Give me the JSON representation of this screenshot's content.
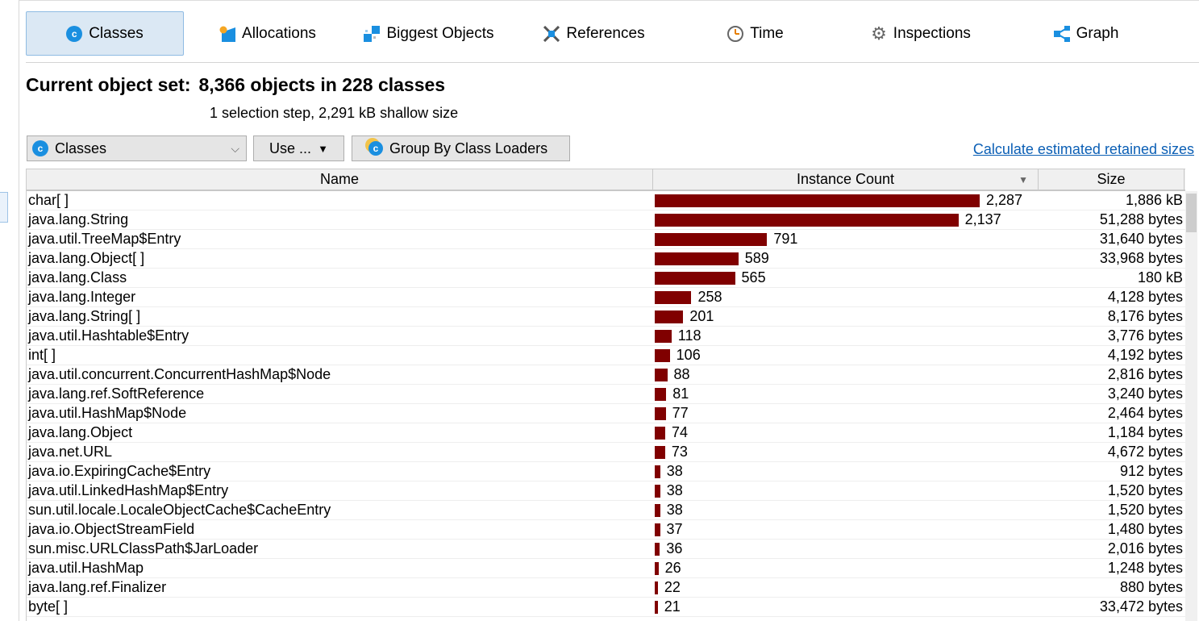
{
  "tabs": [
    {
      "label": "Classes",
      "icon": "classes-icon",
      "selected": true
    },
    {
      "label": "Allocations",
      "icon": "allocations-icon"
    },
    {
      "label": "Biggest Objects",
      "icon": "biggest-objects-icon"
    },
    {
      "label": "References",
      "icon": "references-icon"
    },
    {
      "label": "Time",
      "icon": "clock-icon"
    },
    {
      "label": "Inspections",
      "icon": "gear-icon"
    },
    {
      "label": "Graph",
      "icon": "graph-icon"
    }
  ],
  "header": {
    "label": "Current object set:",
    "value": "8,366 objects in 228 classes",
    "subtitle": "1 selection step, 2,291 kB shallow size"
  },
  "toolbar": {
    "view_select": "Classes",
    "use_button": "Use ...",
    "group_button": "Group By Class Loaders",
    "retained_link": "Calculate estimated retained sizes"
  },
  "table": {
    "columns": [
      "Name",
      "Instance Count",
      "Size"
    ],
    "sort_column": "Instance Count",
    "bar_color": "#800000",
    "rows": [
      {
        "name": "char[ ]",
        "count": 2287,
        "count_label": "2,287",
        "size": "1,886 kB"
      },
      {
        "name": "java.lang.String",
        "count": 2137,
        "count_label": "2,137",
        "size": "51,288 bytes"
      },
      {
        "name": "java.util.TreeMap$Entry",
        "count": 791,
        "count_label": "791",
        "size": "31,640 bytes"
      },
      {
        "name": "java.lang.Object[ ]",
        "count": 589,
        "count_label": "589",
        "size": "33,968 bytes"
      },
      {
        "name": "java.lang.Class",
        "count": 565,
        "count_label": "565",
        "size": "180 kB"
      },
      {
        "name": "java.lang.Integer",
        "count": 258,
        "count_label": "258",
        "size": "4,128 bytes"
      },
      {
        "name": "java.lang.String[ ]",
        "count": 201,
        "count_label": "201",
        "size": "8,176 bytes"
      },
      {
        "name": "java.util.Hashtable$Entry",
        "count": 118,
        "count_label": "118",
        "size": "3,776 bytes"
      },
      {
        "name": "int[ ]",
        "count": 106,
        "count_label": "106",
        "size": "4,192 bytes"
      },
      {
        "name": "java.util.concurrent.ConcurrentHashMap$Node",
        "count": 88,
        "count_label": "88",
        "size": "2,816 bytes"
      },
      {
        "name": "java.lang.ref.SoftReference",
        "count": 81,
        "count_label": "81",
        "size": "3,240 bytes"
      },
      {
        "name": "java.util.HashMap$Node",
        "count": 77,
        "count_label": "77",
        "size": "2,464 bytes"
      },
      {
        "name": "java.lang.Object",
        "count": 74,
        "count_label": "74",
        "size": "1,184 bytes"
      },
      {
        "name": "java.net.URL",
        "count": 73,
        "count_label": "73",
        "size": "4,672 bytes"
      },
      {
        "name": "java.io.ExpiringCache$Entry",
        "count": 38,
        "count_label": "38",
        "size": "912 bytes"
      },
      {
        "name": "java.util.LinkedHashMap$Entry",
        "count": 38,
        "count_label": "38",
        "size": "1,520 bytes"
      },
      {
        "name": "sun.util.locale.LocaleObjectCache$CacheEntry",
        "count": 38,
        "count_label": "38",
        "size": "1,520 bytes"
      },
      {
        "name": "java.io.ObjectStreamField",
        "count": 37,
        "count_label": "37",
        "size": "1,480 bytes"
      },
      {
        "name": "sun.misc.URLClassPath$JarLoader",
        "count": 36,
        "count_label": "36",
        "size": "2,016 bytes"
      },
      {
        "name": "java.util.HashMap",
        "count": 26,
        "count_label": "26",
        "size": "1,248 bytes"
      },
      {
        "name": "java.lang.ref.Finalizer",
        "count": 22,
        "count_label": "22",
        "size": "880 bytes"
      },
      {
        "name": "byte[ ]",
        "count": 21,
        "count_label": "21",
        "size": "33,472 bytes"
      }
    ]
  }
}
